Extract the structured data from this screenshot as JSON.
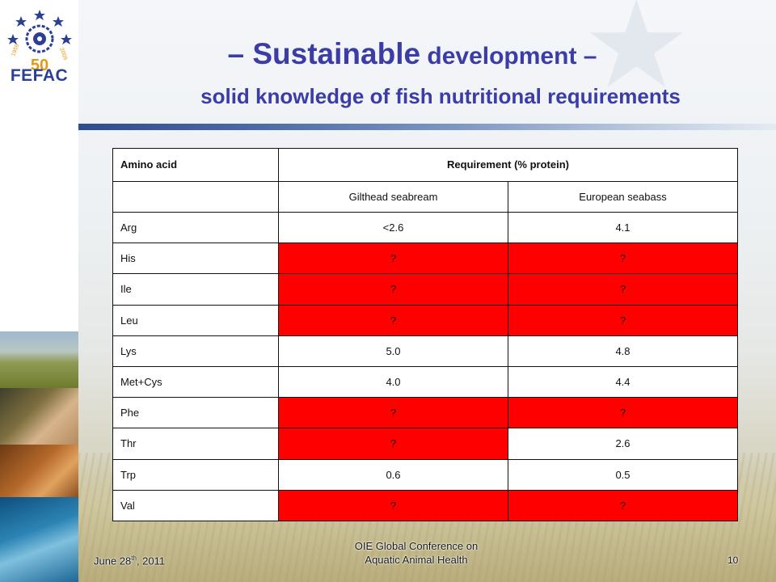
{
  "title": {
    "line1_dash_left": "– ",
    "line1_main": "Sustainable",
    "line1_rest": " development –",
    "line2": "solid knowledge of fish nutritional requirements"
  },
  "logo": {
    "text": "FEFAC",
    "anniversary": "50",
    "years": "1959 · 2009"
  },
  "table": {
    "header": {
      "col1": "Amino acid",
      "requirement": "Requirement (% protein)"
    },
    "subheader": {
      "col1": "",
      "col2": "Gilthead seabream",
      "col3": "European seabass"
    },
    "rows": [
      {
        "acid": "Arg",
        "seabream": "<2.6",
        "seabass": "4.1",
        "seabream_unknown": false,
        "seabass_unknown": false
      },
      {
        "acid": "His",
        "seabream": "?",
        "seabass": "?",
        "seabream_unknown": true,
        "seabass_unknown": true
      },
      {
        "acid": "Ile",
        "seabream": "?",
        "seabass": "?",
        "seabream_unknown": true,
        "seabass_unknown": true
      },
      {
        "acid": "Leu",
        "seabream": "?",
        "seabass": "?",
        "seabream_unknown": true,
        "seabass_unknown": true
      },
      {
        "acid": "Lys",
        "seabream": "5.0",
        "seabass": "4.8",
        "seabream_unknown": false,
        "seabass_unknown": false
      },
      {
        "acid": "Met+Cys",
        "seabream": "4.0",
        "seabass": "4.4",
        "seabream_unknown": false,
        "seabass_unknown": false
      },
      {
        "acid": "Phe",
        "seabream": "?",
        "seabass": "?",
        "seabream_unknown": true,
        "seabass_unknown": true
      },
      {
        "acid": "Thr",
        "seabream": "?",
        "seabass": "2.6",
        "seabream_unknown": true,
        "seabass_unknown": false
      },
      {
        "acid": "Trp",
        "seabream": "0.6",
        "seabass": "0.5",
        "seabream_unknown": false,
        "seabass_unknown": false
      },
      {
        "acid": "Val",
        "seabream": "?",
        "seabass": "?",
        "seabream_unknown": true,
        "seabass_unknown": true
      }
    ]
  },
  "footer": {
    "date_prefix": "June 28",
    "date_sup": "th",
    "date_suffix": ", 2011",
    "conference_line1": "OIE Global Conference on",
    "conference_line2": "Aquatic Animal Health",
    "page": "10"
  },
  "colors": {
    "title": "#3c3ca6",
    "unknown_cell": "#ff0000",
    "logo": "#2b3f95"
  }
}
